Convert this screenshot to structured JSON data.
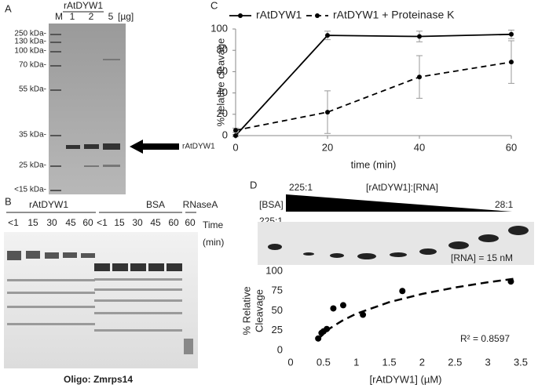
{
  "panel_a": {
    "label": "A",
    "header": "rAtDYW1",
    "lanes": [
      "M",
      "1",
      "2",
      "5",
      "[µg]"
    ],
    "markers": [
      "250 kDa-",
      "130 kDa-",
      "100 kDa-",
      "70 kDa-",
      "55 kDa-",
      "35 kDa-",
      "25 kDa-",
      "<15 kDa-"
    ],
    "arrow_label": "rAtDYW1"
  },
  "panel_b": {
    "label": "B",
    "groups": [
      "rAtDYW1",
      "BSA",
      "RNaseA"
    ],
    "times": [
      "<1",
      "15",
      "30",
      "45",
      "60",
      "<1",
      "15",
      "30",
      "45",
      "60",
      "60"
    ],
    "time_label": [
      "Time",
      "(min)"
    ],
    "caption": "Oligo: Zmrps14"
  },
  "panel_d_gel": {
    "control": [
      "[BSA]",
      "225:1"
    ],
    "ratio_start": "225:1",
    "ratio_title": "[rAtDYW1]:[RNA]",
    "ratio_end": "28:1",
    "rna_note": "[RNA] = 15 nM"
  },
  "chart_data": [
    {
      "type": "line",
      "panel": "C",
      "x_label": "time (min)",
      "y_label": "% relative cleavage",
      "x": [
        0,
        20,
        40,
        60
      ],
      "series": [
        {
          "name": "rAtDYW1",
          "color": "#000000",
          "style": "solid",
          "values": [
            0,
            94,
            93,
            95
          ],
          "errors": [
            1,
            4,
            5,
            4
          ]
        },
        {
          "name": "rAtDYW1 + Proteinase K",
          "color": "#000000",
          "style": "dashed",
          "values": [
            5,
            22,
            55,
            69
          ],
          "errors": [
            2,
            20,
            20,
            20
          ]
        }
      ],
      "xlim": [
        0,
        60
      ],
      "xticks": [
        0,
        20,
        40,
        60
      ],
      "ylim": [
        0,
        100
      ],
      "yticks": [
        0,
        20,
        40,
        60,
        80,
        100
      ],
      "legend": "top"
    },
    {
      "type": "scatter",
      "panel": "D",
      "x_label": "[rAtDYW1] (µM)",
      "y_label": [
        "% Relative",
        "Cleavage"
      ],
      "annotation": "R² = 0.8597",
      "color": "#000000",
      "x": [
        0.42,
        0.47,
        0.5,
        0.55,
        0.65,
        0.8,
        1.1,
        1.7,
        3.35
      ],
      "values": [
        15,
        22,
        24,
        27,
        53,
        57,
        45,
        75,
        87
      ],
      "xlim": [
        0,
        3.5
      ],
      "xticks": [
        0,
        0.5,
        1,
        1.5,
        2,
        2.5,
        3,
        3.5
      ],
      "ylim": [
        0,
        100
      ],
      "yticks": [
        0,
        25,
        50,
        75,
        100
      ]
    }
  ]
}
